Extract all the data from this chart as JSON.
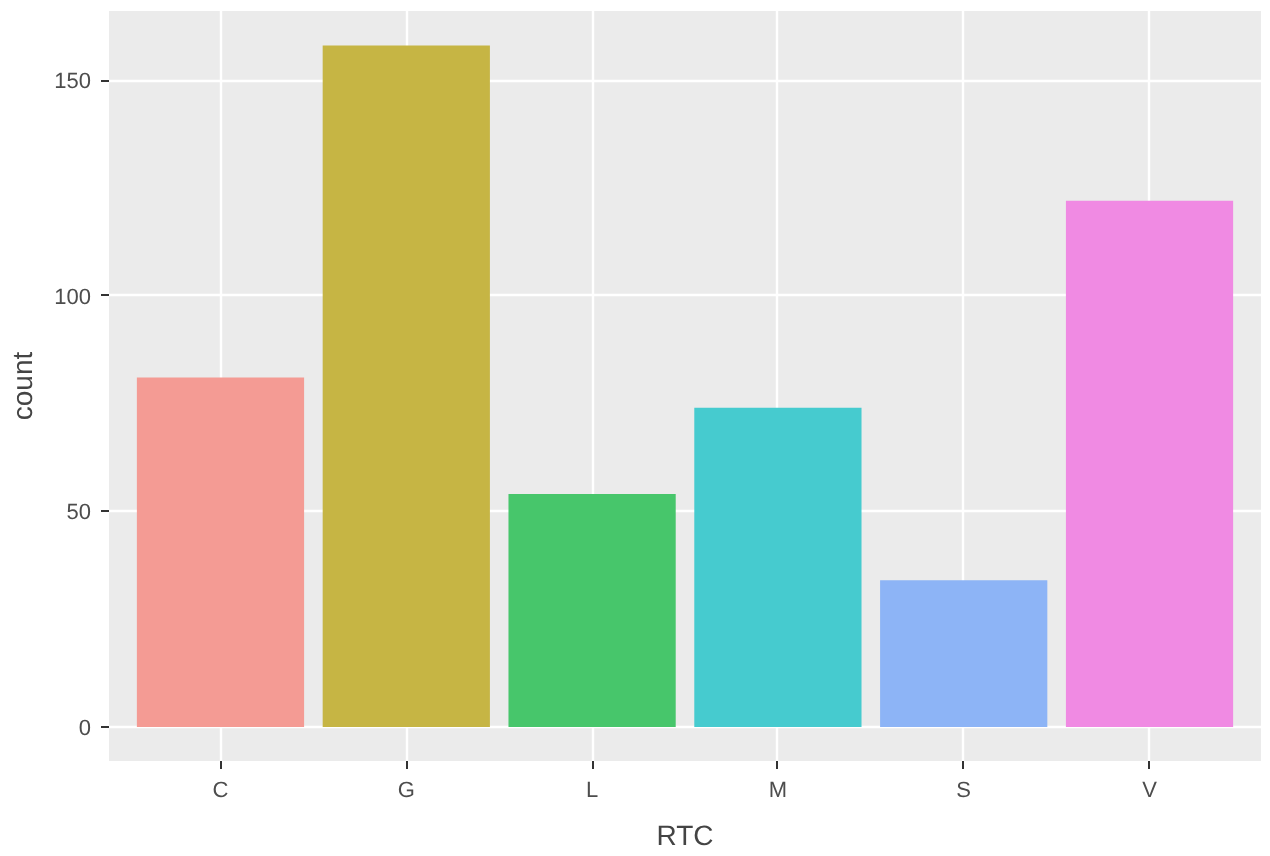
{
  "chart_data": {
    "type": "bar",
    "xlabel": "RTC",
    "ylabel": "count",
    "categories": [
      "C",
      "G",
      "L",
      "M",
      "S",
      "V"
    ],
    "values": [
      81,
      158,
      54,
      74,
      34,
      122
    ],
    "colors": [
      "#f49b94",
      "#c6b544",
      "#47c66b",
      "#46cbcf",
      "#8db4f6",
      "#f08ae3"
    ],
    "ylim": [
      -7.9,
      166
    ],
    "yticks": [
      0,
      50,
      100,
      150
    ],
    "grid": true
  }
}
